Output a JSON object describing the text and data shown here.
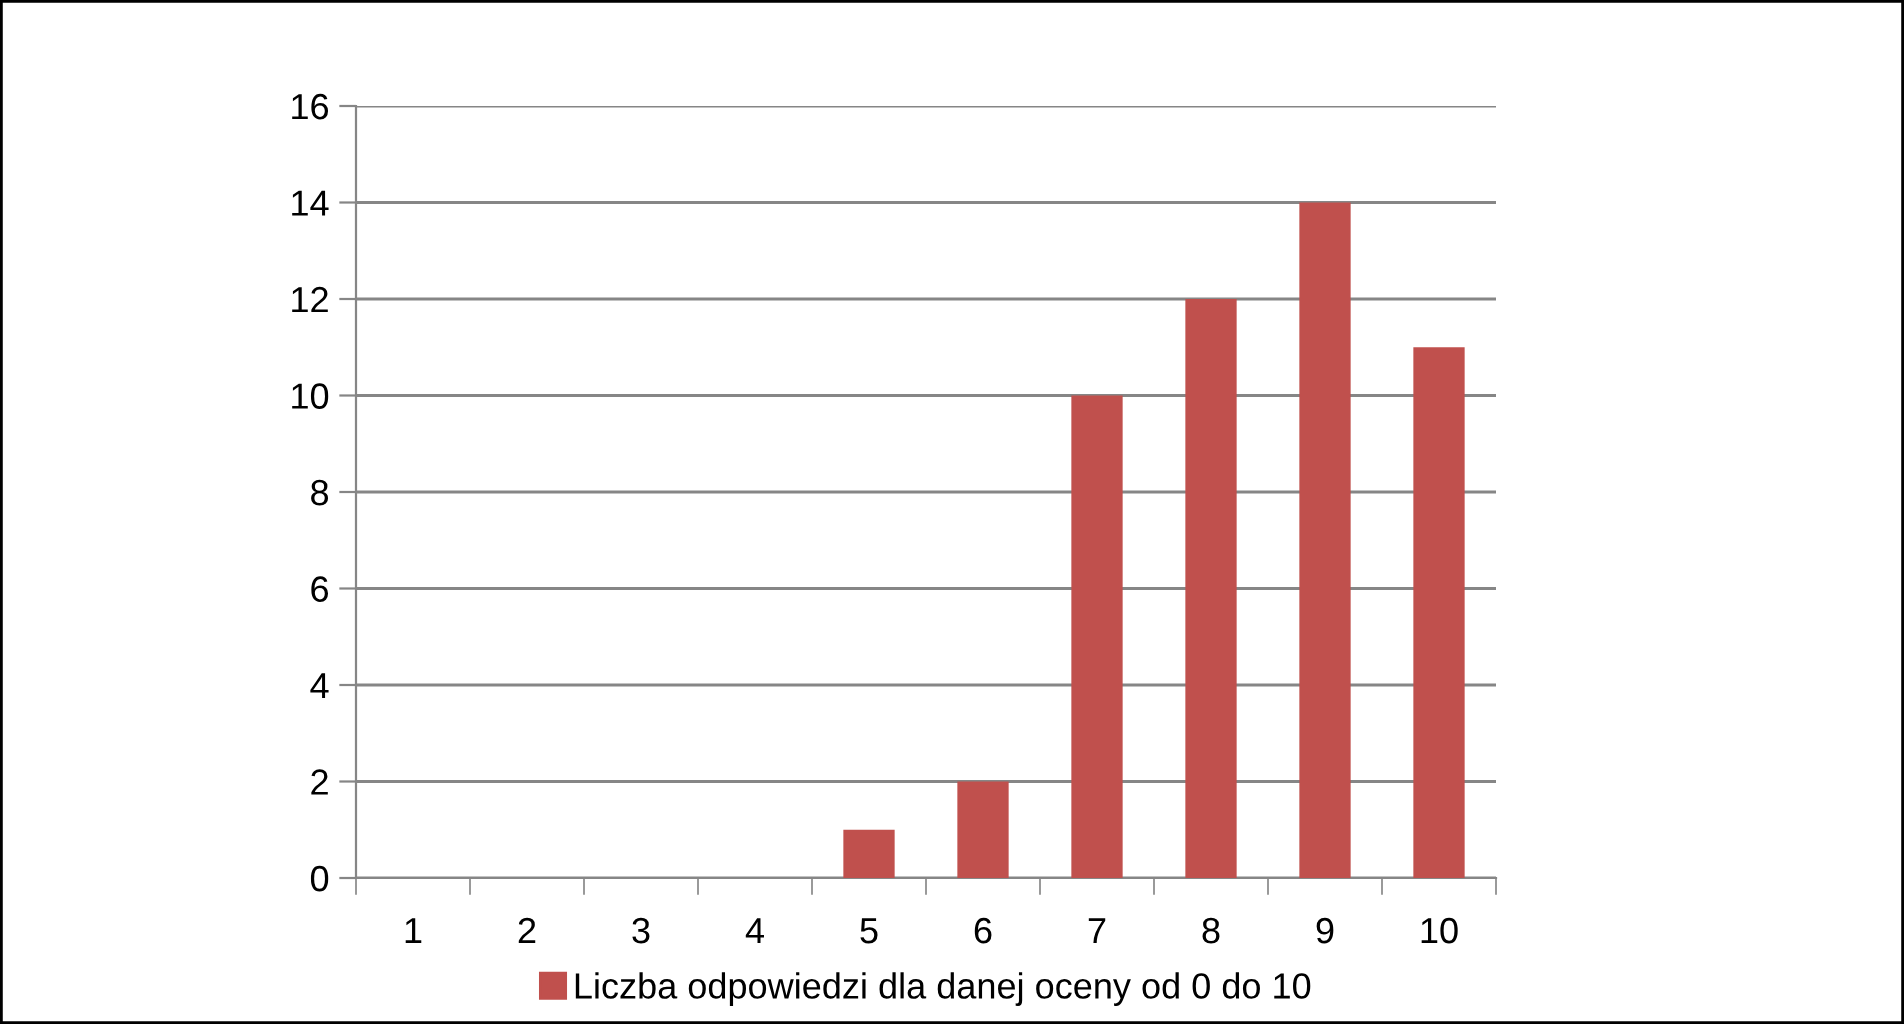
{
  "chart_data": {
    "type": "bar",
    "categories": [
      "1",
      "2",
      "3",
      "4",
      "5",
      "6",
      "7",
      "8",
      "9",
      "10"
    ],
    "series": [
      {
        "name": "Liczba odpowiedzi dla danej oceny od 0 do 10",
        "color": "#c0504d",
        "values": [
          0,
          0,
          0,
          0,
          1,
          2,
          10,
          12,
          14,
          11
        ]
      }
    ],
    "ylim": [
      0,
      16
    ],
    "yticks": [
      0,
      2,
      4,
      6,
      8,
      10,
      12,
      14,
      16
    ],
    "grid": "y",
    "legend": "bottom"
  }
}
